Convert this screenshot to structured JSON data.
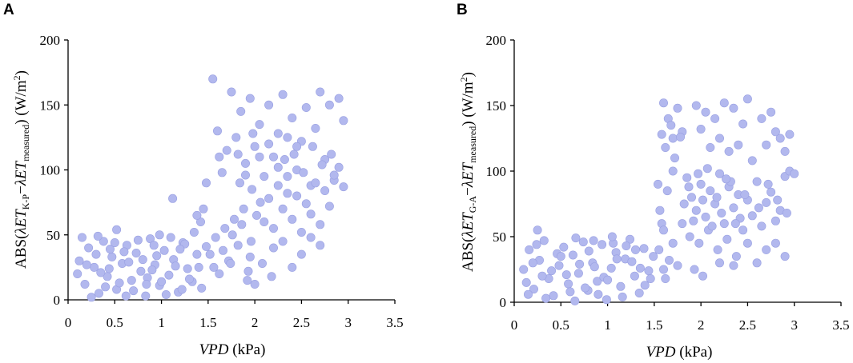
{
  "chart_data": [
    {
      "type": "scatter",
      "panel_label": "A",
      "xlabel": {
        "italic": "VPD",
        "plain": " (kPa)"
      },
      "ylabel": {
        "prefix": "ABS(",
        "sym1": "λET",
        "sub1": "K-P",
        "minus": "−",
        "sym2": "λET",
        "sub2": "measured",
        "suffix": ") (W/m",
        "sup": "2",
        "close": ")"
      },
      "xlim": [
        0,
        3.5
      ],
      "ylim": [
        0,
        200
      ],
      "xticks": [
        "0",
        "0.5",
        "1",
        "1.5",
        "2",
        "2.5",
        "3",
        "3.5"
      ],
      "yticks": [
        "0",
        "50",
        "100",
        "150",
        "200"
      ],
      "grid": false,
      "point_color": "#b2b8ee",
      "points": [
        [
          0.12,
          30
        ],
        [
          0.18,
          12
        ],
        [
          0.22,
          40
        ],
        [
          0.28,
          25
        ],
        [
          0.33,
          5
        ],
        [
          0.38,
          45
        ],
        [
          0.42,
          18
        ],
        [
          0.47,
          33
        ],
        [
          0.52,
          8
        ],
        [
          0.58,
          28
        ],
        [
          0.63,
          42
        ],
        [
          0.68,
          15
        ],
        [
          0.73,
          36
        ],
        [
          0.78,
          22
        ],
        [
          0.83,
          3
        ],
        [
          0.88,
          47
        ],
        [
          0.93,
          27
        ],
        [
          0.98,
          11
        ],
        [
          1.03,
          38
        ],
        [
          1.08,
          19
        ],
        [
          1.13,
          31
        ],
        [
          1.18,
          6
        ],
        [
          1.23,
          44
        ],
        [
          1.28,
          24
        ],
        [
          1.33,
          14
        ],
        [
          1.38,
          35
        ],
        [
          1.43,
          9
        ],
        [
          1.48,
          41
        ],
        [
          0.15,
          48
        ],
        [
          0.25,
          2
        ],
        [
          0.35,
          21
        ],
        [
          0.45,
          39
        ],
        [
          0.55,
          13
        ],
        [
          0.65,
          29
        ],
        [
          0.75,
          46
        ],
        [
          0.85,
          17
        ],
        [
          0.95,
          34
        ],
        [
          1.05,
          4
        ],
        [
          1.15,
          26
        ],
        [
          1.25,
          43
        ],
        [
          0.1,
          20
        ],
        [
          0.3,
          35
        ],
        [
          0.5,
          44
        ],
        [
          0.7,
          7
        ],
        [
          0.9,
          23
        ],
        [
          1.1,
          48
        ],
        [
          1.3,
          16
        ],
        [
          0.2,
          27
        ],
        [
          0.4,
          10
        ],
        [
          0.6,
          37
        ],
        [
          0.8,
          31
        ],
        [
          1.0,
          14
        ],
        [
          1.2,
          39
        ],
        [
          1.4,
          25
        ],
        [
          0.32,
          49
        ],
        [
          0.62,
          3
        ],
        [
          0.92,
          42
        ],
        [
          1.22,
          8
        ],
        [
          0.44,
          24
        ],
        [
          0.84,
          12
        ],
        [
          1.52,
          35
        ],
        [
          1.58,
          48
        ],
        [
          1.62,
          20
        ],
        [
          1.68,
          55
        ],
        [
          1.72,
          30
        ],
        [
          1.78,
          62
        ],
        [
          1.82,
          42
        ],
        [
          1.88,
          70
        ],
        [
          1.92,
          15
        ],
        [
          1.97,
          85
        ],
        [
          1.56,
          25
        ],
        [
          1.66,
          38
        ],
        [
          1.76,
          50
        ],
        [
          1.86,
          58
        ],
        [
          1.96,
          45
        ],
        [
          2.06,
          75
        ],
        [
          1.74,
          28
        ],
        [
          1.84,
          90
        ],
        [
          1.95,
          33
        ],
        [
          2.02,
          65
        ],
        [
          1.55,
          170
        ],
        [
          1.6,
          130
        ],
        [
          1.65,
          98
        ],
        [
          1.7,
          115
        ],
        [
          1.75,
          160
        ],
        [
          1.8,
          125
        ],
        [
          1.85,
          145
        ],
        [
          1.9,
          105
        ],
        [
          1.95,
          155
        ],
        [
          2.0,
          118
        ],
        [
          2.05,
          135
        ],
        [
          2.1,
          95
        ],
        [
          2.15,
          150
        ],
        [
          2.2,
          110
        ],
        [
          2.25,
          128
        ],
        [
          2.3,
          158
        ],
        [
          2.35,
          82
        ],
        [
          2.4,
          140
        ],
        [
          2.45,
          100
        ],
        [
          2.5,
          122
        ],
        [
          2.55,
          148
        ],
        [
          2.6,
          88
        ],
        [
          2.65,
          132
        ],
        [
          2.7,
          160
        ],
        [
          2.75,
          108
        ],
        [
          2.8,
          150
        ],
        [
          2.85,
          92
        ],
        [
          2.9,
          155
        ],
        [
          2.95,
          138
        ],
        [
          1.62,
          110
        ],
        [
          2.1,
          60
        ],
        [
          2.15,
          78
        ],
        [
          2.2,
          55
        ],
        [
          2.25,
          88
        ],
        [
          2.3,
          70
        ],
        [
          2.35,
          95
        ],
        [
          2.4,
          62
        ],
        [
          2.45,
          80
        ],
        [
          2.5,
          52
        ],
        [
          2.55,
          74
        ],
        [
          2.6,
          66
        ],
        [
          2.65,
          90
        ],
        [
          2.7,
          58
        ],
        [
          2.75,
          84
        ],
        [
          2.8,
          72
        ],
        [
          2.85,
          96
        ],
        [
          2.9,
          102
        ],
        [
          2.95,
          87
        ],
        [
          2.2,
          40
        ],
        [
          2.3,
          45
        ],
        [
          2.4,
          25
        ],
        [
          2.5,
          35
        ],
        [
          2.6,
          48
        ],
        [
          2.7,
          42
        ],
        [
          2.45,
          118
        ],
        [
          2.35,
          125
        ],
        [
          2.25,
          102
        ],
        [
          2.15,
          120
        ],
        [
          2.05,
          110
        ],
        [
          1.98,
          128
        ],
        [
          1.9,
          96
        ],
        [
          1.82,
          112
        ],
        [
          2.32,
          108
        ],
        [
          2.42,
          112
        ],
        [
          2.52,
          98
        ],
        [
          2.62,
          118
        ],
        [
          2.72,
          104
        ],
        [
          2.82,
          112
        ],
        [
          1.48,
          90
        ],
        [
          1.42,
          60
        ],
        [
          1.12,
          78
        ],
        [
          1.35,
          52
        ],
        [
          1.45,
          70
        ],
        [
          0.52,
          54
        ],
        [
          0.98,
          50
        ],
        [
          1.38,
          65
        ],
        [
          2.0,
          12
        ],
        [
          1.93,
          22
        ],
        [
          2.08,
          28
        ],
        [
          2.18,
          18
        ]
      ]
    },
    {
      "type": "scatter",
      "panel_label": "B",
      "xlabel": {
        "italic": "VPD",
        "plain": " (kPa)"
      },
      "ylabel": {
        "prefix": "ABS(",
        "sym1": "λET",
        "sub1": "G-A",
        "minus": "−",
        "sym2": "λET",
        "sub2": "measured",
        "suffix": ") (W/m",
        "sup": "2",
        "close": ")"
      },
      "xlim": [
        0,
        3.5
      ],
      "ylim": [
        0,
        200
      ],
      "xticks": [
        "0",
        "0.5",
        "1",
        "1.5",
        "2",
        "2.5",
        "3",
        "3.5"
      ],
      "yticks": [
        "0",
        "50",
        "100",
        "150",
        "200"
      ],
      "grid": false,
      "point_color": "#b2b8ee",
      "points": [
        [
          0.1,
          25
        ],
        [
          0.16,
          40
        ],
        [
          0.21,
          10
        ],
        [
          0.27,
          32
        ],
        [
          0.32,
          47
        ],
        [
          0.37,
          18
        ],
        [
          0.42,
          5
        ],
        [
          0.48,
          28
        ],
        [
          0.53,
          42
        ],
        [
          0.58,
          14
        ],
        [
          0.63,
          36
        ],
        [
          0.69,
          22
        ],
        [
          0.74,
          46
        ],
        [
          0.79,
          9
        ],
        [
          0.84,
          30
        ],
        [
          0.89,
          16
        ],
        [
          0.94,
          44
        ],
        [
          0.99,
          2
        ],
        [
          1.04,
          26
        ],
        [
          1.09,
          38
        ],
        [
          1.14,
          12
        ],
        [
          1.19,
          33
        ],
        [
          1.24,
          48
        ],
        [
          1.29,
          20
        ],
        [
          1.34,
          7
        ],
        [
          1.39,
          41
        ],
        [
          1.44,
          24
        ],
        [
          1.49,
          35
        ],
        [
          0.13,
          15
        ],
        [
          0.24,
          44
        ],
        [
          0.34,
          3
        ],
        [
          0.46,
          37
        ],
        [
          0.56,
          21
        ],
        [
          0.66,
          49
        ],
        [
          0.76,
          11
        ],
        [
          0.86,
          27
        ],
        [
          0.96,
          19
        ],
        [
          1.06,
          45
        ],
        [
          1.16,
          4
        ],
        [
          1.26,
          31
        ],
        [
          0.2,
          30
        ],
        [
          0.4,
          24
        ],
        [
          0.6,
          8
        ],
        [
          0.8,
          39
        ],
        [
          1.0,
          17
        ],
        [
          1.2,
          43
        ],
        [
          1.4,
          13
        ],
        [
          0.3,
          20
        ],
        [
          0.5,
          35
        ],
        [
          0.7,
          29
        ],
        [
          0.9,
          6
        ],
        [
          1.1,
          33
        ],
        [
          1.3,
          40
        ],
        [
          1.46,
          18
        ],
        [
          0.25,
          55
        ],
        [
          0.65,
          1
        ],
        [
          1.05,
          50
        ],
        [
          1.35,
          26
        ],
        [
          0.15,
          6
        ],
        [
          0.85,
          47
        ],
        [
          1.55,
          40
        ],
        [
          1.6,
          25
        ],
        [
          1.58,
          60
        ],
        [
          1.62,
          18
        ],
        [
          1.56,
          70
        ],
        [
          1.6,
          55
        ],
        [
          1.64,
          85
        ],
        [
          1.66,
          32
        ],
        [
          1.7,
          45
        ],
        [
          1.54,
          90
        ],
        [
          1.6,
          152
        ],
        [
          1.65,
          140
        ],
        [
          1.7,
          125
        ],
        [
          1.75,
          148
        ],
        [
          1.8,
          130
        ],
        [
          1.62,
          118
        ],
        [
          1.72,
          110
        ],
        [
          1.68,
          135
        ],
        [
          1.78,
          126
        ],
        [
          1.58,
          128
        ],
        [
          1.95,
          150
        ],
        [
          2.0,
          132
        ],
        [
          2.05,
          145
        ],
        [
          2.1,
          118
        ],
        [
          2.15,
          140
        ],
        [
          2.2,
          125
        ],
        [
          2.25,
          152
        ],
        [
          2.3,
          115
        ],
        [
          2.35,
          148
        ],
        [
          2.4,
          120
        ],
        [
          2.45,
          136
        ],
        [
          2.5,
          155
        ],
        [
          2.55,
          108
        ],
        [
          2.65,
          140
        ],
        [
          2.7,
          120
        ],
        [
          2.75,
          145
        ],
        [
          2.8,
          130
        ],
        [
          2.85,
          125
        ],
        [
          2.9,
          115
        ],
        [
          2.95,
          128
        ],
        [
          1.85,
          95
        ],
        [
          1.9,
          80
        ],
        [
          1.95,
          70
        ],
        [
          2.0,
          90
        ],
        [
          2.05,
          65
        ],
        [
          2.1,
          85
        ],
        [
          2.15,
          75
        ],
        [
          2.2,
          98
        ],
        [
          2.25,
          60
        ],
        [
          2.3,
          88
        ],
        [
          2.35,
          72
        ],
        [
          2.4,
          82
        ],
        [
          2.45,
          55
        ],
        [
          2.5,
          78
        ],
        [
          2.55,
          66
        ],
        [
          2.6,
          92
        ],
        [
          2.65,
          58
        ],
        [
          2.7,
          76
        ],
        [
          2.75,
          84
        ],
        [
          2.8,
          62
        ],
        [
          2.85,
          70
        ],
        [
          2.9,
          96
        ],
        [
          2.95,
          100
        ],
        [
          3.0,
          98
        ],
        [
          1.88,
          50
        ],
        [
          1.98,
          45
        ],
        [
          2.08,
          55
        ],
        [
          2.18,
          40
        ],
        [
          2.28,
          48
        ],
        [
          2.38,
          35
        ],
        [
          1.92,
          62
        ],
        [
          2.02,
          78
        ],
        [
          2.12,
          58
        ],
        [
          2.22,
          68
        ],
        [
          2.32,
          92
        ],
        [
          2.42,
          64
        ],
        [
          1.82,
          75
        ],
        [
          1.87,
          88
        ],
        [
          1.97,
          98
        ],
        [
          2.07,
          102
        ],
        [
          2.17,
          80
        ],
        [
          2.27,
          94
        ],
        [
          2.37,
          60
        ],
        [
          2.47,
          82
        ],
        [
          1.93,
          25
        ],
        [
          2.02,
          20
        ],
        [
          2.2,
          30
        ],
        [
          2.35,
          28
        ],
        [
          2.5,
          45
        ],
        [
          2.6,
          30
        ],
        [
          2.7,
          40
        ],
        [
          2.8,
          45
        ],
        [
          2.9,
          35
        ],
        [
          1.75,
          28
        ],
        [
          1.7,
          100
        ],
        [
          1.8,
          60
        ],
        [
          2.62,
          72
        ],
        [
          2.72,
          90
        ],
        [
          2.82,
          78
        ],
        [
          2.92,
          68
        ]
      ]
    }
  ]
}
